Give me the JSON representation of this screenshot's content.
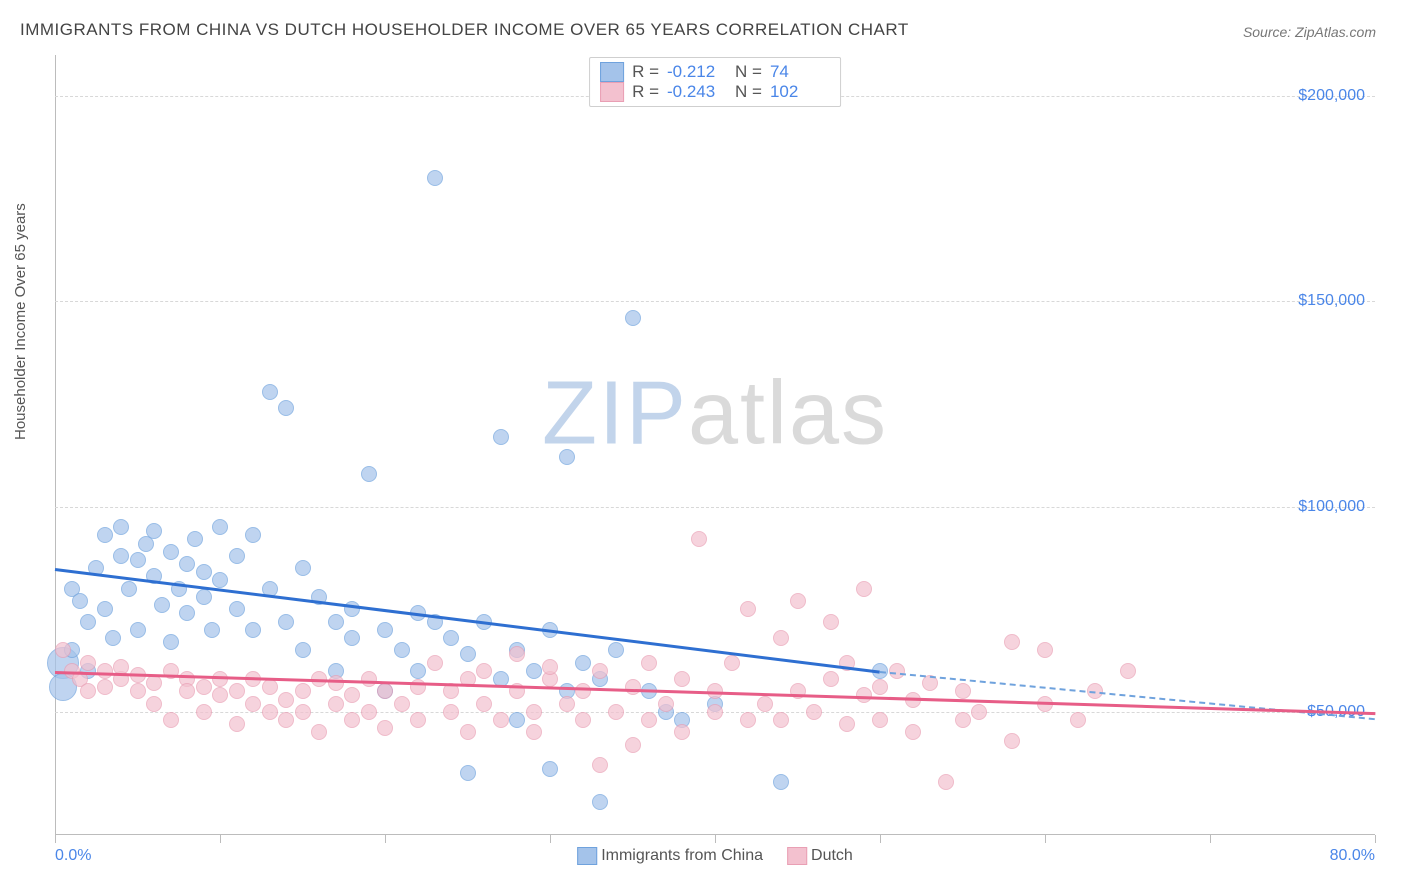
{
  "title": "IMMIGRANTS FROM CHINA VS DUTCH HOUSEHOLDER INCOME OVER 65 YEARS CORRELATION CHART",
  "source": "Source: ZipAtlas.com",
  "ylabel": "Householder Income Over 65 years",
  "watermark": {
    "zip": "ZIP",
    "rest": "atlas"
  },
  "chart": {
    "type": "scatter+trendline",
    "background_color": "#ffffff",
    "grid_color": "#d8d8d8",
    "axis_color": "#bcbcbc",
    "text_color": "#555555",
    "value_color": "#4a86e8",
    "title_fontsize": 17,
    "label_fontsize": 15,
    "tick_fontsize": 16,
    "xlim": [
      0,
      80
    ],
    "ylim": [
      20000,
      210000
    ],
    "yticks": [
      {
        "v": 50000,
        "label": "$50,000"
      },
      {
        "v": 100000,
        "label": "$100,000"
      },
      {
        "v": 150000,
        "label": "$150,000"
      },
      {
        "v": 200000,
        "label": "$200,000"
      }
    ],
    "xtick_positions": [
      0,
      10,
      20,
      30,
      40,
      50,
      60,
      70,
      80
    ],
    "xtick_labels": {
      "min": "0.0%",
      "max": "80.0%"
    },
    "marker_radius": 8,
    "marker_border_width": 1,
    "marker_fill_opacity": 0.35,
    "series": [
      {
        "id": "china",
        "label": "Immigrants from China",
        "stroke": "#6fa2dd",
        "fill": "#a4c3ea",
        "trend_color": "#2e6fd1",
        "R": "-0.212",
        "N": "74",
        "trend": {
          "x1": 0,
          "y1": 85000,
          "x2": 50,
          "y2": 60000
        },
        "extend": {
          "x1": 50,
          "y1": 60000,
          "x2": 80,
          "y2": 48500
        },
        "points": [
          {
            "x": 0.5,
            "y": 62000,
            "r": 16
          },
          {
            "x": 0.5,
            "y": 56000,
            "r": 14
          },
          {
            "x": 1,
            "y": 65000
          },
          {
            "x": 1,
            "y": 80000
          },
          {
            "x": 1.5,
            "y": 77000
          },
          {
            "x": 2,
            "y": 72000
          },
          {
            "x": 2,
            "y": 60000
          },
          {
            "x": 2.5,
            "y": 85000
          },
          {
            "x": 3,
            "y": 93000
          },
          {
            "x": 3,
            "y": 75000
          },
          {
            "x": 3.5,
            "y": 68000
          },
          {
            "x": 4,
            "y": 88000
          },
          {
            "x": 4,
            "y": 95000
          },
          {
            "x": 4.5,
            "y": 80000
          },
          {
            "x": 5,
            "y": 87000
          },
          {
            "x": 5,
            "y": 70000
          },
          {
            "x": 5.5,
            "y": 91000
          },
          {
            "x": 6,
            "y": 83000
          },
          {
            "x": 6,
            "y": 94000
          },
          {
            "x": 6.5,
            "y": 76000
          },
          {
            "x": 7,
            "y": 89000
          },
          {
            "x": 7,
            "y": 67000
          },
          {
            "x": 7.5,
            "y": 80000
          },
          {
            "x": 8,
            "y": 86000
          },
          {
            "x": 8,
            "y": 74000
          },
          {
            "x": 8.5,
            "y": 92000
          },
          {
            "x": 9,
            "y": 78000
          },
          {
            "x": 9,
            "y": 84000
          },
          {
            "x": 9.5,
            "y": 70000
          },
          {
            "x": 10,
            "y": 95000
          },
          {
            "x": 10,
            "y": 82000
          },
          {
            "x": 11,
            "y": 75000
          },
          {
            "x": 11,
            "y": 88000
          },
          {
            "x": 12,
            "y": 70000
          },
          {
            "x": 12,
            "y": 93000
          },
          {
            "x": 13,
            "y": 80000
          },
          {
            "x": 13,
            "y": 128000
          },
          {
            "x": 14,
            "y": 72000
          },
          {
            "x": 14,
            "y": 124000
          },
          {
            "x": 15,
            "y": 85000
          },
          {
            "x": 15,
            "y": 65000
          },
          {
            "x": 16,
            "y": 78000
          },
          {
            "x": 17,
            "y": 72000
          },
          {
            "x": 17,
            "y": 60000
          },
          {
            "x": 18,
            "y": 75000
          },
          {
            "x": 18,
            "y": 68000
          },
          {
            "x": 19,
            "y": 108000
          },
          {
            "x": 20,
            "y": 70000
          },
          {
            "x": 20,
            "y": 55000
          },
          {
            "x": 21,
            "y": 65000
          },
          {
            "x": 22,
            "y": 74000
          },
          {
            "x": 22,
            "y": 60000
          },
          {
            "x": 23,
            "y": 72000
          },
          {
            "x": 23,
            "y": 180000
          },
          {
            "x": 24,
            "y": 68000
          },
          {
            "x": 25,
            "y": 64000
          },
          {
            "x": 25,
            "y": 35000
          },
          {
            "x": 26,
            "y": 72000
          },
          {
            "x": 27,
            "y": 58000
          },
          {
            "x": 27,
            "y": 117000
          },
          {
            "x": 28,
            "y": 65000
          },
          {
            "x": 28,
            "y": 48000
          },
          {
            "x": 29,
            "y": 60000
          },
          {
            "x": 30,
            "y": 70000
          },
          {
            "x": 30,
            "y": 36000
          },
          {
            "x": 31,
            "y": 55000
          },
          {
            "x": 31,
            "y": 112000
          },
          {
            "x": 32,
            "y": 62000
          },
          {
            "x": 33,
            "y": 58000
          },
          {
            "x": 33,
            "y": 28000
          },
          {
            "x": 34,
            "y": 65000
          },
          {
            "x": 35,
            "y": 146000
          },
          {
            "x": 36,
            "y": 55000
          },
          {
            "x": 37,
            "y": 50000
          },
          {
            "x": 38,
            "y": 48000
          },
          {
            "x": 40,
            "y": 52000
          },
          {
            "x": 44,
            "y": 33000
          },
          {
            "x": 50,
            "y": 60000
          }
        ]
      },
      {
        "id": "dutch",
        "label": "Dutch",
        "stroke": "#e99fb4",
        "fill": "#f3c1cf",
        "trend_color": "#e75d87",
        "R": "-0.243",
        "N": "102",
        "trend": {
          "x1": 0,
          "y1": 60000,
          "x2": 80,
          "y2": 50000
        },
        "extend": null,
        "points": [
          {
            "x": 0.5,
            "y": 65000
          },
          {
            "x": 1,
            "y": 60000
          },
          {
            "x": 1.5,
            "y": 58000
          },
          {
            "x": 2,
            "y": 62000
          },
          {
            "x": 2,
            "y": 55000
          },
          {
            "x": 3,
            "y": 60000
          },
          {
            "x": 3,
            "y": 56000
          },
          {
            "x": 4,
            "y": 58000
          },
          {
            "x": 4,
            "y": 61000
          },
          {
            "x": 5,
            "y": 55000
          },
          {
            "x": 5,
            "y": 59000
          },
          {
            "x": 6,
            "y": 57000
          },
          {
            "x": 6,
            "y": 52000
          },
          {
            "x": 7,
            "y": 60000
          },
          {
            "x": 7,
            "y": 48000
          },
          {
            "x": 8,
            "y": 58000
          },
          {
            "x": 8,
            "y": 55000
          },
          {
            "x": 9,
            "y": 50000
          },
          {
            "x": 9,
            "y": 56000
          },
          {
            "x": 10,
            "y": 54000
          },
          {
            "x": 10,
            "y": 58000
          },
          {
            "x": 11,
            "y": 47000
          },
          {
            "x": 11,
            "y": 55000
          },
          {
            "x": 12,
            "y": 52000
          },
          {
            "x": 12,
            "y": 58000
          },
          {
            "x": 13,
            "y": 50000
          },
          {
            "x": 13,
            "y": 56000
          },
          {
            "x": 14,
            "y": 53000
          },
          {
            "x": 14,
            "y": 48000
          },
          {
            "x": 15,
            "y": 55000
          },
          {
            "x": 15,
            "y": 50000
          },
          {
            "x": 16,
            "y": 58000
          },
          {
            "x": 16,
            "y": 45000
          },
          {
            "x": 17,
            "y": 52000
          },
          {
            "x": 17,
            "y": 57000
          },
          {
            "x": 18,
            "y": 48000
          },
          {
            "x": 18,
            "y": 54000
          },
          {
            "x": 19,
            "y": 50000
          },
          {
            "x": 19,
            "y": 58000
          },
          {
            "x": 20,
            "y": 46000
          },
          {
            "x": 20,
            "y": 55000
          },
          {
            "x": 21,
            "y": 52000
          },
          {
            "x": 22,
            "y": 48000
          },
          {
            "x": 22,
            "y": 56000
          },
          {
            "x": 23,
            "y": 62000
          },
          {
            "x": 24,
            "y": 50000
          },
          {
            "x": 24,
            "y": 55000
          },
          {
            "x": 25,
            "y": 58000
          },
          {
            "x": 25,
            "y": 45000
          },
          {
            "x": 26,
            "y": 52000
          },
          {
            "x": 26,
            "y": 60000
          },
          {
            "x": 27,
            "y": 48000
          },
          {
            "x": 28,
            "y": 55000
          },
          {
            "x": 28,
            "y": 64000
          },
          {
            "x": 29,
            "y": 50000
          },
          {
            "x": 29,
            "y": 45000
          },
          {
            "x": 30,
            "y": 58000
          },
          {
            "x": 30,
            "y": 61000
          },
          {
            "x": 31,
            "y": 52000
          },
          {
            "x": 32,
            "y": 48000
          },
          {
            "x": 32,
            "y": 55000
          },
          {
            "x": 33,
            "y": 37000
          },
          {
            "x": 33,
            "y": 60000
          },
          {
            "x": 34,
            "y": 50000
          },
          {
            "x": 35,
            "y": 42000
          },
          {
            "x": 35,
            "y": 56000
          },
          {
            "x": 36,
            "y": 48000
          },
          {
            "x": 36,
            "y": 62000
          },
          {
            "x": 37,
            "y": 52000
          },
          {
            "x": 38,
            "y": 45000
          },
          {
            "x": 38,
            "y": 58000
          },
          {
            "x": 39,
            "y": 92000
          },
          {
            "x": 40,
            "y": 50000
          },
          {
            "x": 40,
            "y": 55000
          },
          {
            "x": 41,
            "y": 62000
          },
          {
            "x": 42,
            "y": 48000
          },
          {
            "x": 42,
            "y": 75000
          },
          {
            "x": 43,
            "y": 52000
          },
          {
            "x": 44,
            "y": 68000
          },
          {
            "x": 44,
            "y": 48000
          },
          {
            "x": 45,
            "y": 55000
          },
          {
            "x": 45,
            "y": 77000
          },
          {
            "x": 46,
            "y": 50000
          },
          {
            "x": 47,
            "y": 58000
          },
          {
            "x": 47,
            "y": 72000
          },
          {
            "x": 48,
            "y": 47000
          },
          {
            "x": 48,
            "y": 62000
          },
          {
            "x": 49,
            "y": 54000
          },
          {
            "x": 49,
            "y": 80000
          },
          {
            "x": 50,
            "y": 48000
          },
          {
            "x": 50,
            "y": 56000
          },
          {
            "x": 51,
            "y": 60000
          },
          {
            "x": 52,
            "y": 45000
          },
          {
            "x": 52,
            "y": 53000
          },
          {
            "x": 53,
            "y": 57000
          },
          {
            "x": 54,
            "y": 33000
          },
          {
            "x": 55,
            "y": 48000
          },
          {
            "x": 55,
            "y": 55000
          },
          {
            "x": 56,
            "y": 50000
          },
          {
            "x": 58,
            "y": 67000
          },
          {
            "x": 58,
            "y": 43000
          },
          {
            "x": 60,
            "y": 52000
          },
          {
            "x": 60,
            "y": 65000
          },
          {
            "x": 62,
            "y": 48000
          },
          {
            "x": 63,
            "y": 55000
          },
          {
            "x": 65,
            "y": 60000
          }
        ]
      }
    ]
  }
}
